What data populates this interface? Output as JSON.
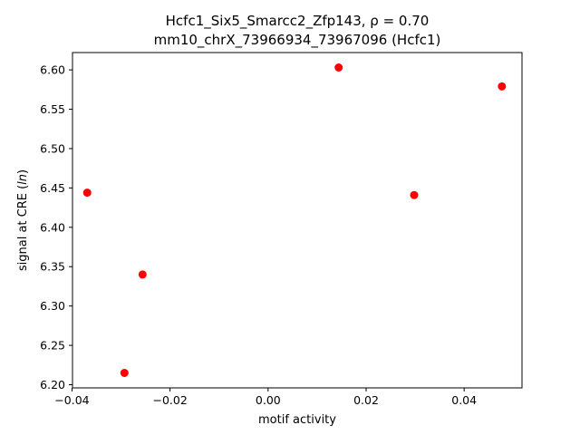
{
  "chart_data": {
    "type": "scatter",
    "title_line1": "Hcfc1_Six5_Smarcc2_Zfp143, ρ = 0.70",
    "title_line2": "mm10_chrX_73966934_73967096 (Hcfc1)",
    "xlabel": "motif activity",
    "ylabel": "signal at CRE (ln)",
    "xlim": [
      -0.0399,
      0.0518
    ],
    "ylim": [
      6.196,
      6.622
    ],
    "xticks": [
      -0.04,
      -0.02,
      0.0,
      0.02,
      0.04
    ],
    "xtick_labels": [
      "−0.04",
      "−0.02",
      "0.00",
      "0.02",
      "0.04"
    ],
    "yticks": [
      6.2,
      6.25,
      6.3,
      6.35,
      6.4,
      6.45,
      6.5,
      6.55,
      6.6
    ],
    "ytick_labels": [
      "6.20",
      "6.25",
      "6.30",
      "6.35",
      "6.40",
      "6.45",
      "6.50",
      "6.55",
      "6.60"
    ],
    "marker_color": "#ff0000",
    "grid": false,
    "points": [
      {
        "x": -0.0369,
        "y": 6.444
      },
      {
        "x": -0.0293,
        "y": 6.215
      },
      {
        "x": -0.0256,
        "y": 6.34
      },
      {
        "x": 0.0144,
        "y": 6.603
      },
      {
        "x": 0.0298,
        "y": 6.441
      },
      {
        "x": 0.0477,
        "y": 6.579
      }
    ]
  }
}
